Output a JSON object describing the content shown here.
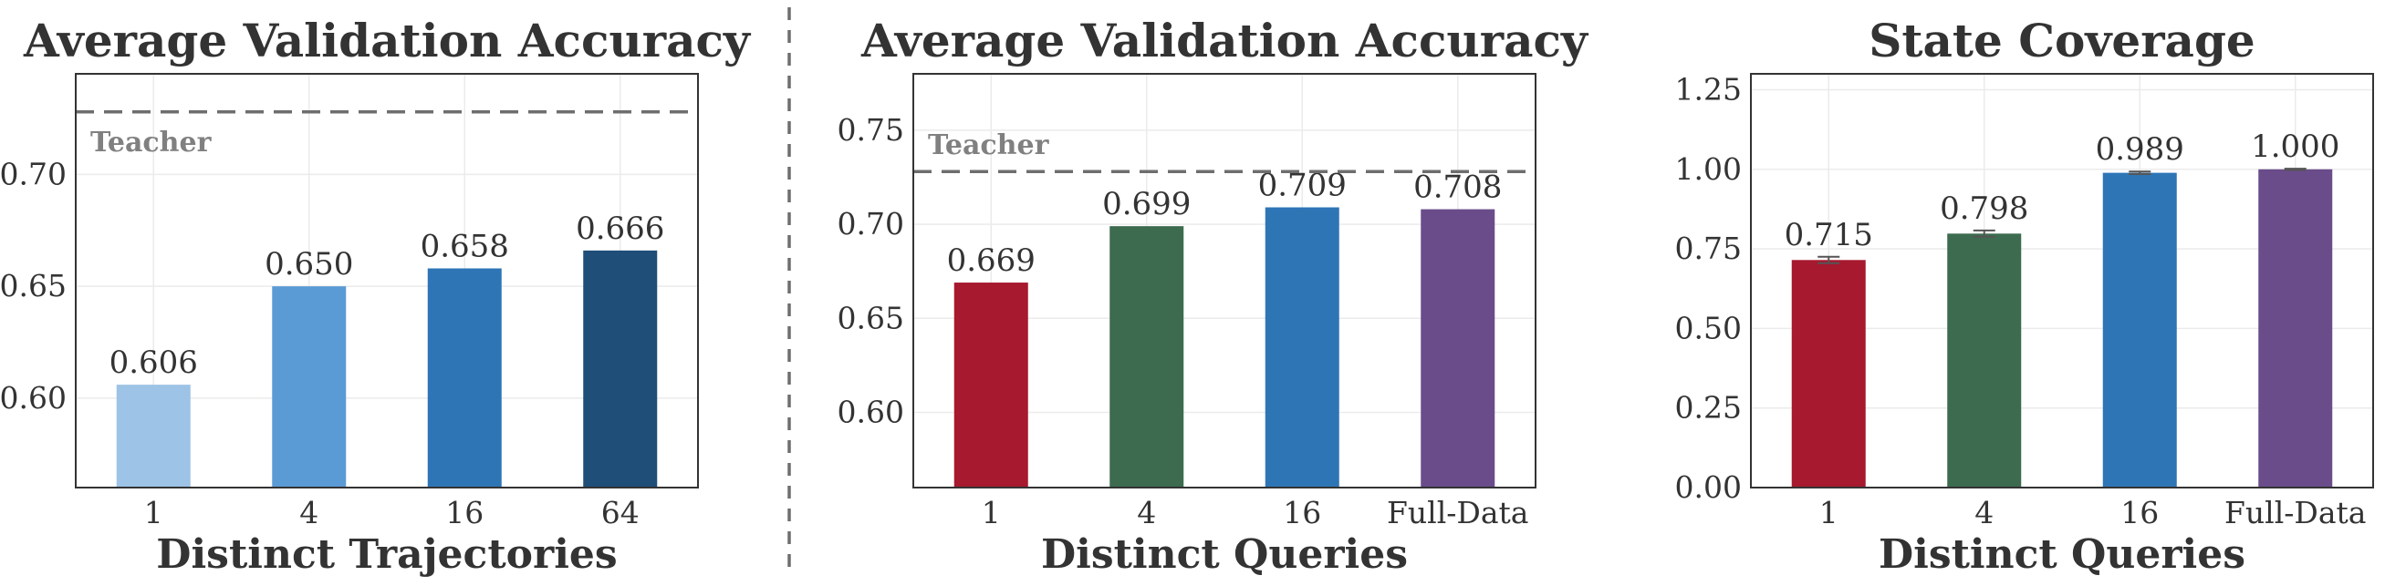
{
  "chart_data": [
    {
      "type": "bar",
      "title": "Average Validation Accuracy",
      "xlabel": "Distinct Trajectories",
      "ylabel": "",
      "categories": [
        "1",
        "4",
        "16",
        "64"
      ],
      "values": [
        0.606,
        0.65,
        0.658,
        0.666
      ],
      "value_labels": [
        "0.606",
        "0.650",
        "0.658",
        "0.666"
      ],
      "colors": [
        "#9dc3e6",
        "#5b9bd5",
        "#2e75b6",
        "#1f4e79"
      ],
      "ylim": [
        0.56,
        0.745
      ],
      "yticks": [
        0.6,
        0.65,
        0.7
      ],
      "ytick_labels": [
        "0.60",
        "0.65",
        "0.70"
      ],
      "reference_line": {
        "label": "Teacher",
        "value": 0.728
      },
      "grid": true,
      "error_bars": null
    },
    {
      "type": "bar",
      "title": "Average Validation Accuracy",
      "xlabel": "Distinct Queries",
      "ylabel": "",
      "categories": [
        "1",
        "4",
        "16",
        "Full-Data"
      ],
      "values": [
        0.669,
        0.699,
        0.709,
        0.708
      ],
      "value_labels": [
        "0.669",
        "0.699",
        "0.709",
        "0.708"
      ],
      "colors": [
        "#a6192e",
        "#3c6b4f",
        "#2e75b6",
        "#6a4c8b"
      ],
      "ylim": [
        0.56,
        0.78
      ],
      "yticks": [
        0.6,
        0.65,
        0.7,
        0.75
      ],
      "ytick_labels": [
        "0.60",
        "0.65",
        "0.70",
        "0.75"
      ],
      "reference_line": {
        "label": "Teacher",
        "value": 0.728
      },
      "grid": true,
      "error_bars": null
    },
    {
      "type": "bar",
      "title": "State Coverage",
      "xlabel": "Distinct Queries",
      "ylabel": "",
      "categories": [
        "1",
        "4",
        "16",
        "Full-Data"
      ],
      "values": [
        0.715,
        0.798,
        0.989,
        1.0
      ],
      "value_labels": [
        "0.715",
        "0.798",
        "0.989",
        "1.000"
      ],
      "colors": [
        "#a6192e",
        "#3c6b4f",
        "#2e75b6",
        "#6a4c8b"
      ],
      "ylim": [
        0.0,
        1.3
      ],
      "yticks": [
        0.0,
        0.25,
        0.5,
        0.75,
        1.0,
        1.25
      ],
      "ytick_labels": [
        "0.00",
        "0.25",
        "0.50",
        "0.75",
        "1.00",
        "1.25"
      ],
      "reference_line": null,
      "grid": true,
      "error_bars": [
        0.01,
        0.01,
        0.004,
        0.002
      ]
    }
  ]
}
